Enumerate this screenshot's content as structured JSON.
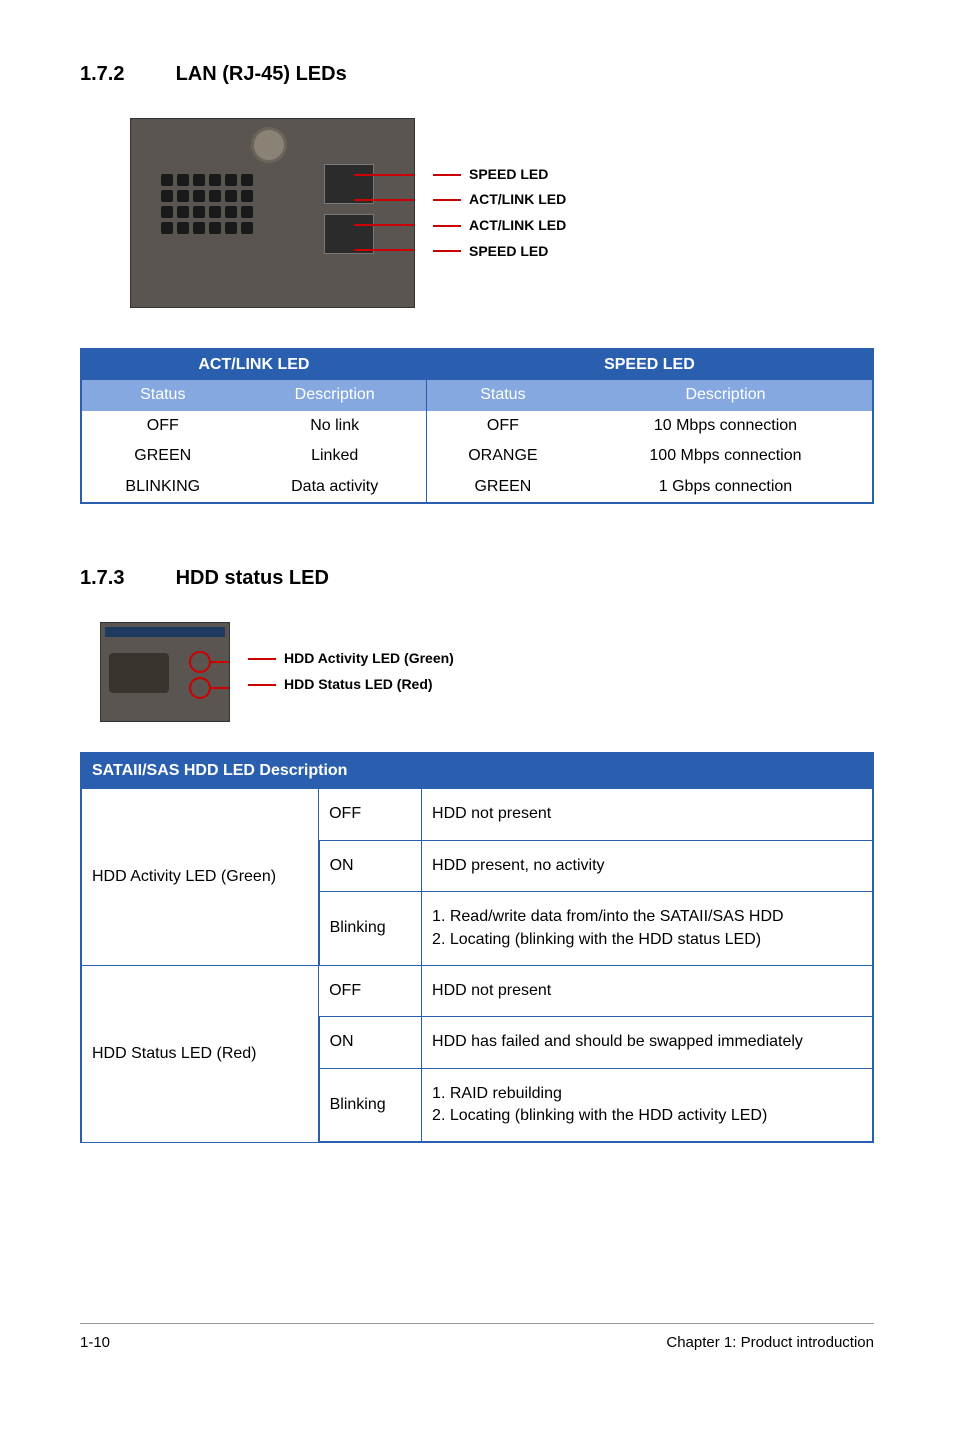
{
  "headings": {
    "h1_num": "1.7.2",
    "h1_title": "LAN (RJ-45) LEDs",
    "h2_num": "1.7.3",
    "h2_title": "HDD status LED"
  },
  "lan_labels": [
    "SPEED LED",
    "ACT/LINK LED",
    "ACT/LINK LED",
    "SPEED LED"
  ],
  "hdd_labels": [
    "HDD Activity LED (Green)",
    "HDD Status LED (Red)"
  ],
  "led_table": {
    "headers": {
      "left": "ACT/LINK LED",
      "right": "SPEED LED"
    },
    "subheaders": [
      "Status",
      "Description",
      "Status",
      "Description"
    ],
    "rows": [
      [
        "OFF",
        "No link",
        "OFF",
        "10 Mbps connection"
      ],
      [
        "GREEN",
        "Linked",
        "ORANGE",
        "100 Mbps connection"
      ],
      [
        "BLINKING",
        "Data activity",
        "GREEN",
        "1 Gbps connection"
      ]
    ],
    "colors": {
      "header_bg": "#2a5fb0",
      "header_fg": "#ffffff",
      "sub_bg": "#84a8df",
      "sub_fg": "#ffffff",
      "border": "#2a5fb0"
    }
  },
  "hdd_table": {
    "header": "SATAII/SAS HDD LED Description",
    "groups": [
      {
        "name": "HDD Activity LED (Green)",
        "rows": [
          [
            "OFF",
            "HDD not present"
          ],
          [
            "ON",
            "HDD present, no activity"
          ],
          [
            "Blinking",
            "1. Read/write data from/into the SATAII/SAS HDD\n2. Locating (blinking with the HDD status LED)"
          ]
        ]
      },
      {
        "name": "HDD Status LED (Red)",
        "rows": [
          [
            "OFF",
            "HDD not present"
          ],
          [
            "ON",
            "HDD has failed and should be swapped immediately"
          ],
          [
            "Blinking",
            "1. RAID rebuilding\n2. Locating (blinking with the HDD activity LED)"
          ]
        ]
      }
    ],
    "colors": {
      "header_bg": "#2a5fb0",
      "header_fg": "#ffffff",
      "border": "#2a5fb0"
    },
    "col_widths": [
      "30%",
      "13%",
      "57%"
    ]
  },
  "footer": {
    "left": "1-10",
    "right": "Chapter 1:  Product introduction"
  }
}
